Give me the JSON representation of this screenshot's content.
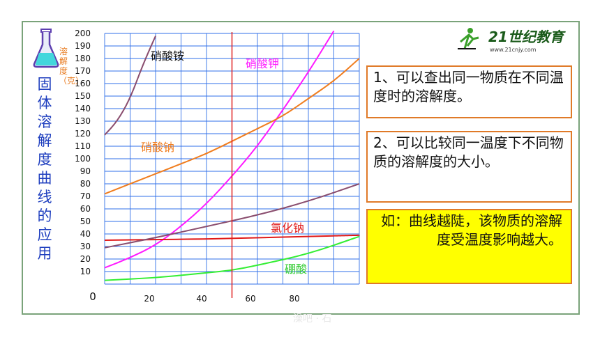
{
  "title_vertical": "固体溶解度曲线的应用",
  "y_unit_label": "溶解度（克）",
  "logo": {
    "text": "21世纪教育",
    "sub": "www.21cnjy.com"
  },
  "notes": [
    "1、可以查出同一物质在不同温度时的溶解度。",
    "2、可以比较同一温度下不同物质的溶解度的大小。",
    "如：曲线越陡，该物质的溶解度受温度影响越大。"
  ],
  "watermark": "澡吧 · 石",
  "colors": {
    "title": "#1f3fbf",
    "unit": "#e87b20",
    "grid": "#2f6fe8",
    "note_border": "#e07a28",
    "highlight": "#ffff00",
    "marker_line": "#e02020"
  },
  "chart_data": {
    "type": "line",
    "y_ticks": [
      10,
      20,
      30,
      40,
      50,
      60,
      70,
      80,
      90,
      100,
      110,
      120,
      130,
      140,
      150,
      160,
      170,
      180,
      190,
      200
    ],
    "x_ticks": [
      "0",
      "20",
      "40",
      "60",
      "80"
    ],
    "ylim": [
      0,
      200
    ],
    "xlim": [
      0,
      100
    ],
    "grid": true,
    "marker_x": 50,
    "series": [
      {
        "name": "硝酸铵",
        "color": "#8a4d6e",
        "x": [
          0,
          5,
          10,
          15,
          20
        ],
        "y": [
          119,
          130,
          148,
          175,
          198
        ]
      },
      {
        "name": "硝酸钾",
        "color": "#ff19ff",
        "x": [
          0,
          10,
          20,
          30,
          40,
          50,
          60,
          70,
          80,
          90
        ],
        "y": [
          13,
          21,
          31,
          46,
          64,
          86,
          110,
          139,
          169,
          202
        ]
      },
      {
        "name": "硝酸钠",
        "color": "#f07d1e",
        "x": [
          0,
          10,
          20,
          30,
          40,
          50,
          60,
          70,
          80,
          90,
          100
        ],
        "y": [
          72,
          80,
          88,
          96,
          104,
          114,
          124,
          134,
          148,
          162,
          180
        ]
      },
      {
        "name": "氯化钠",
        "color": "#e01818",
        "x": [
          0,
          20,
          40,
          50,
          60,
          80,
          100
        ],
        "y": [
          35,
          35.5,
          36,
          36.5,
          37,
          38,
          39
        ]
      },
      {
        "name": "",
        "color": "#8a4d6e",
        "x": [
          0,
          20,
          40,
          60,
          80,
          100
        ],
        "y": [
          29,
          37,
          46,
          55,
          66,
          80
        ]
      },
      {
        "name": "硼酸",
        "color": "#33ee33",
        "x": [
          0,
          20,
          40,
          50,
          60,
          80,
          100
        ],
        "y": [
          3,
          5,
          9,
          11,
          15,
          24,
          38
        ]
      }
    ]
  }
}
